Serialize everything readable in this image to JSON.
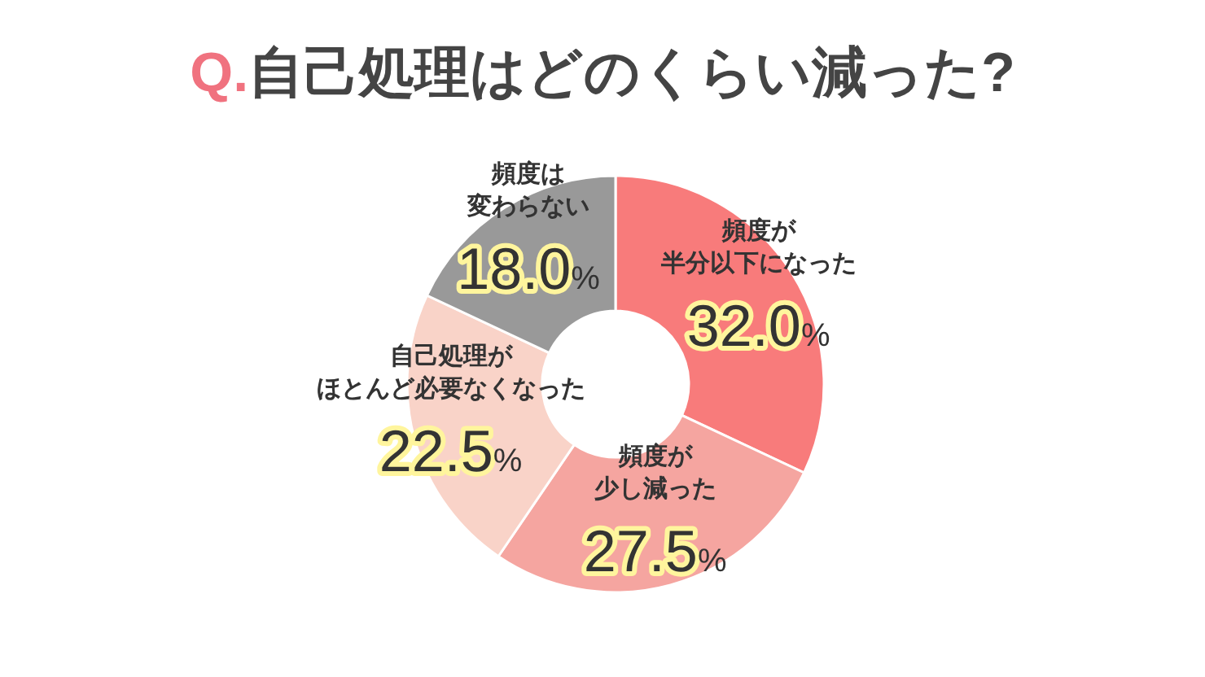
{
  "chart_data": {
    "type": "donut",
    "title": "Q.自己処理はどのくらい減った?",
    "categories": [
      "頻度が半分以下になった",
      "頻度が少し減った",
      "自己処理がほとんど必要なくなった",
      "頻度は変わらない"
    ],
    "values": [
      32.0,
      27.5,
      22.5,
      18.0
    ],
    "value_labels": [
      "32.0%",
      "27.5%",
      "22.5%",
      "18.0%"
    ],
    "colors": [
      "#f87b7b",
      "#f5a5a0",
      "#f9d3c8",
      "#999999"
    ]
  }
}
